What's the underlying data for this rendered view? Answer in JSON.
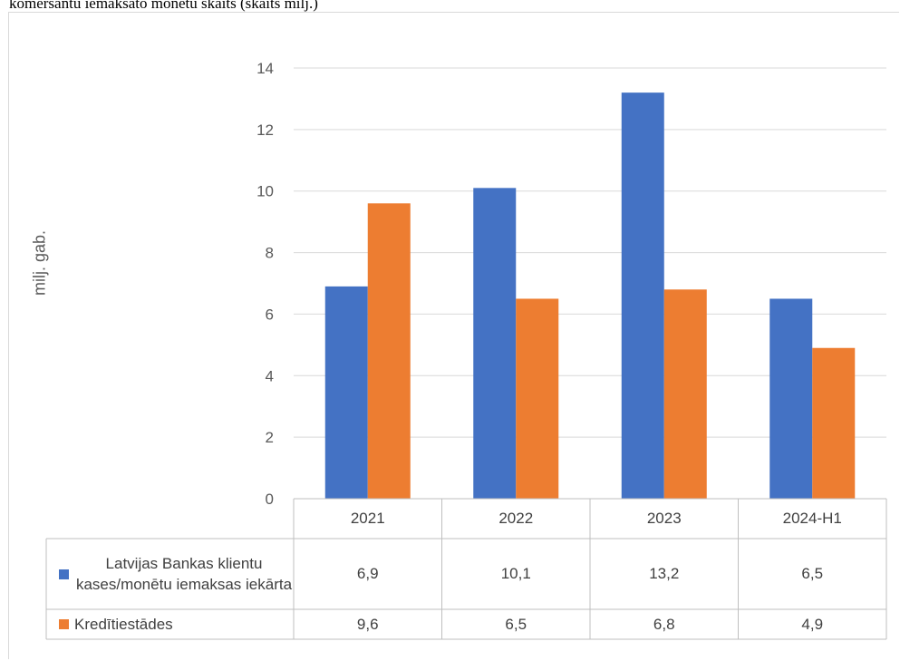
{
  "page": {
    "title": "komersantu iemaksāto monētu skaits (skaits milj.)"
  },
  "chart_data": {
    "type": "bar",
    "title": "",
    "xlabel": "",
    "ylabel": "milj. gab.",
    "ylim": [
      0,
      14
    ],
    "yticks": [
      "0",
      "2",
      "4",
      "6",
      "8",
      "10",
      "12",
      "14"
    ],
    "grid": true,
    "legend": "data-table",
    "categories": [
      "2021",
      "2022",
      "2023",
      "2024-H1"
    ],
    "series": [
      {
        "name": "Latvijas Bankas klientu kases/monētu iemaksas iekārta",
        "color": "#4472c4",
        "values": [
          6.9,
          10.1,
          13.2,
          6.5
        ],
        "labels": [
          "6,9",
          "10,1",
          "13,2",
          "6,5"
        ]
      },
      {
        "name": "Kredītiestādes",
        "color": "#ed7d31",
        "values": [
          9.6,
          6.5,
          6.8,
          4.9
        ],
        "labels": [
          "9,6",
          "6,5",
          "6,8",
          "4,9"
        ]
      }
    ]
  }
}
